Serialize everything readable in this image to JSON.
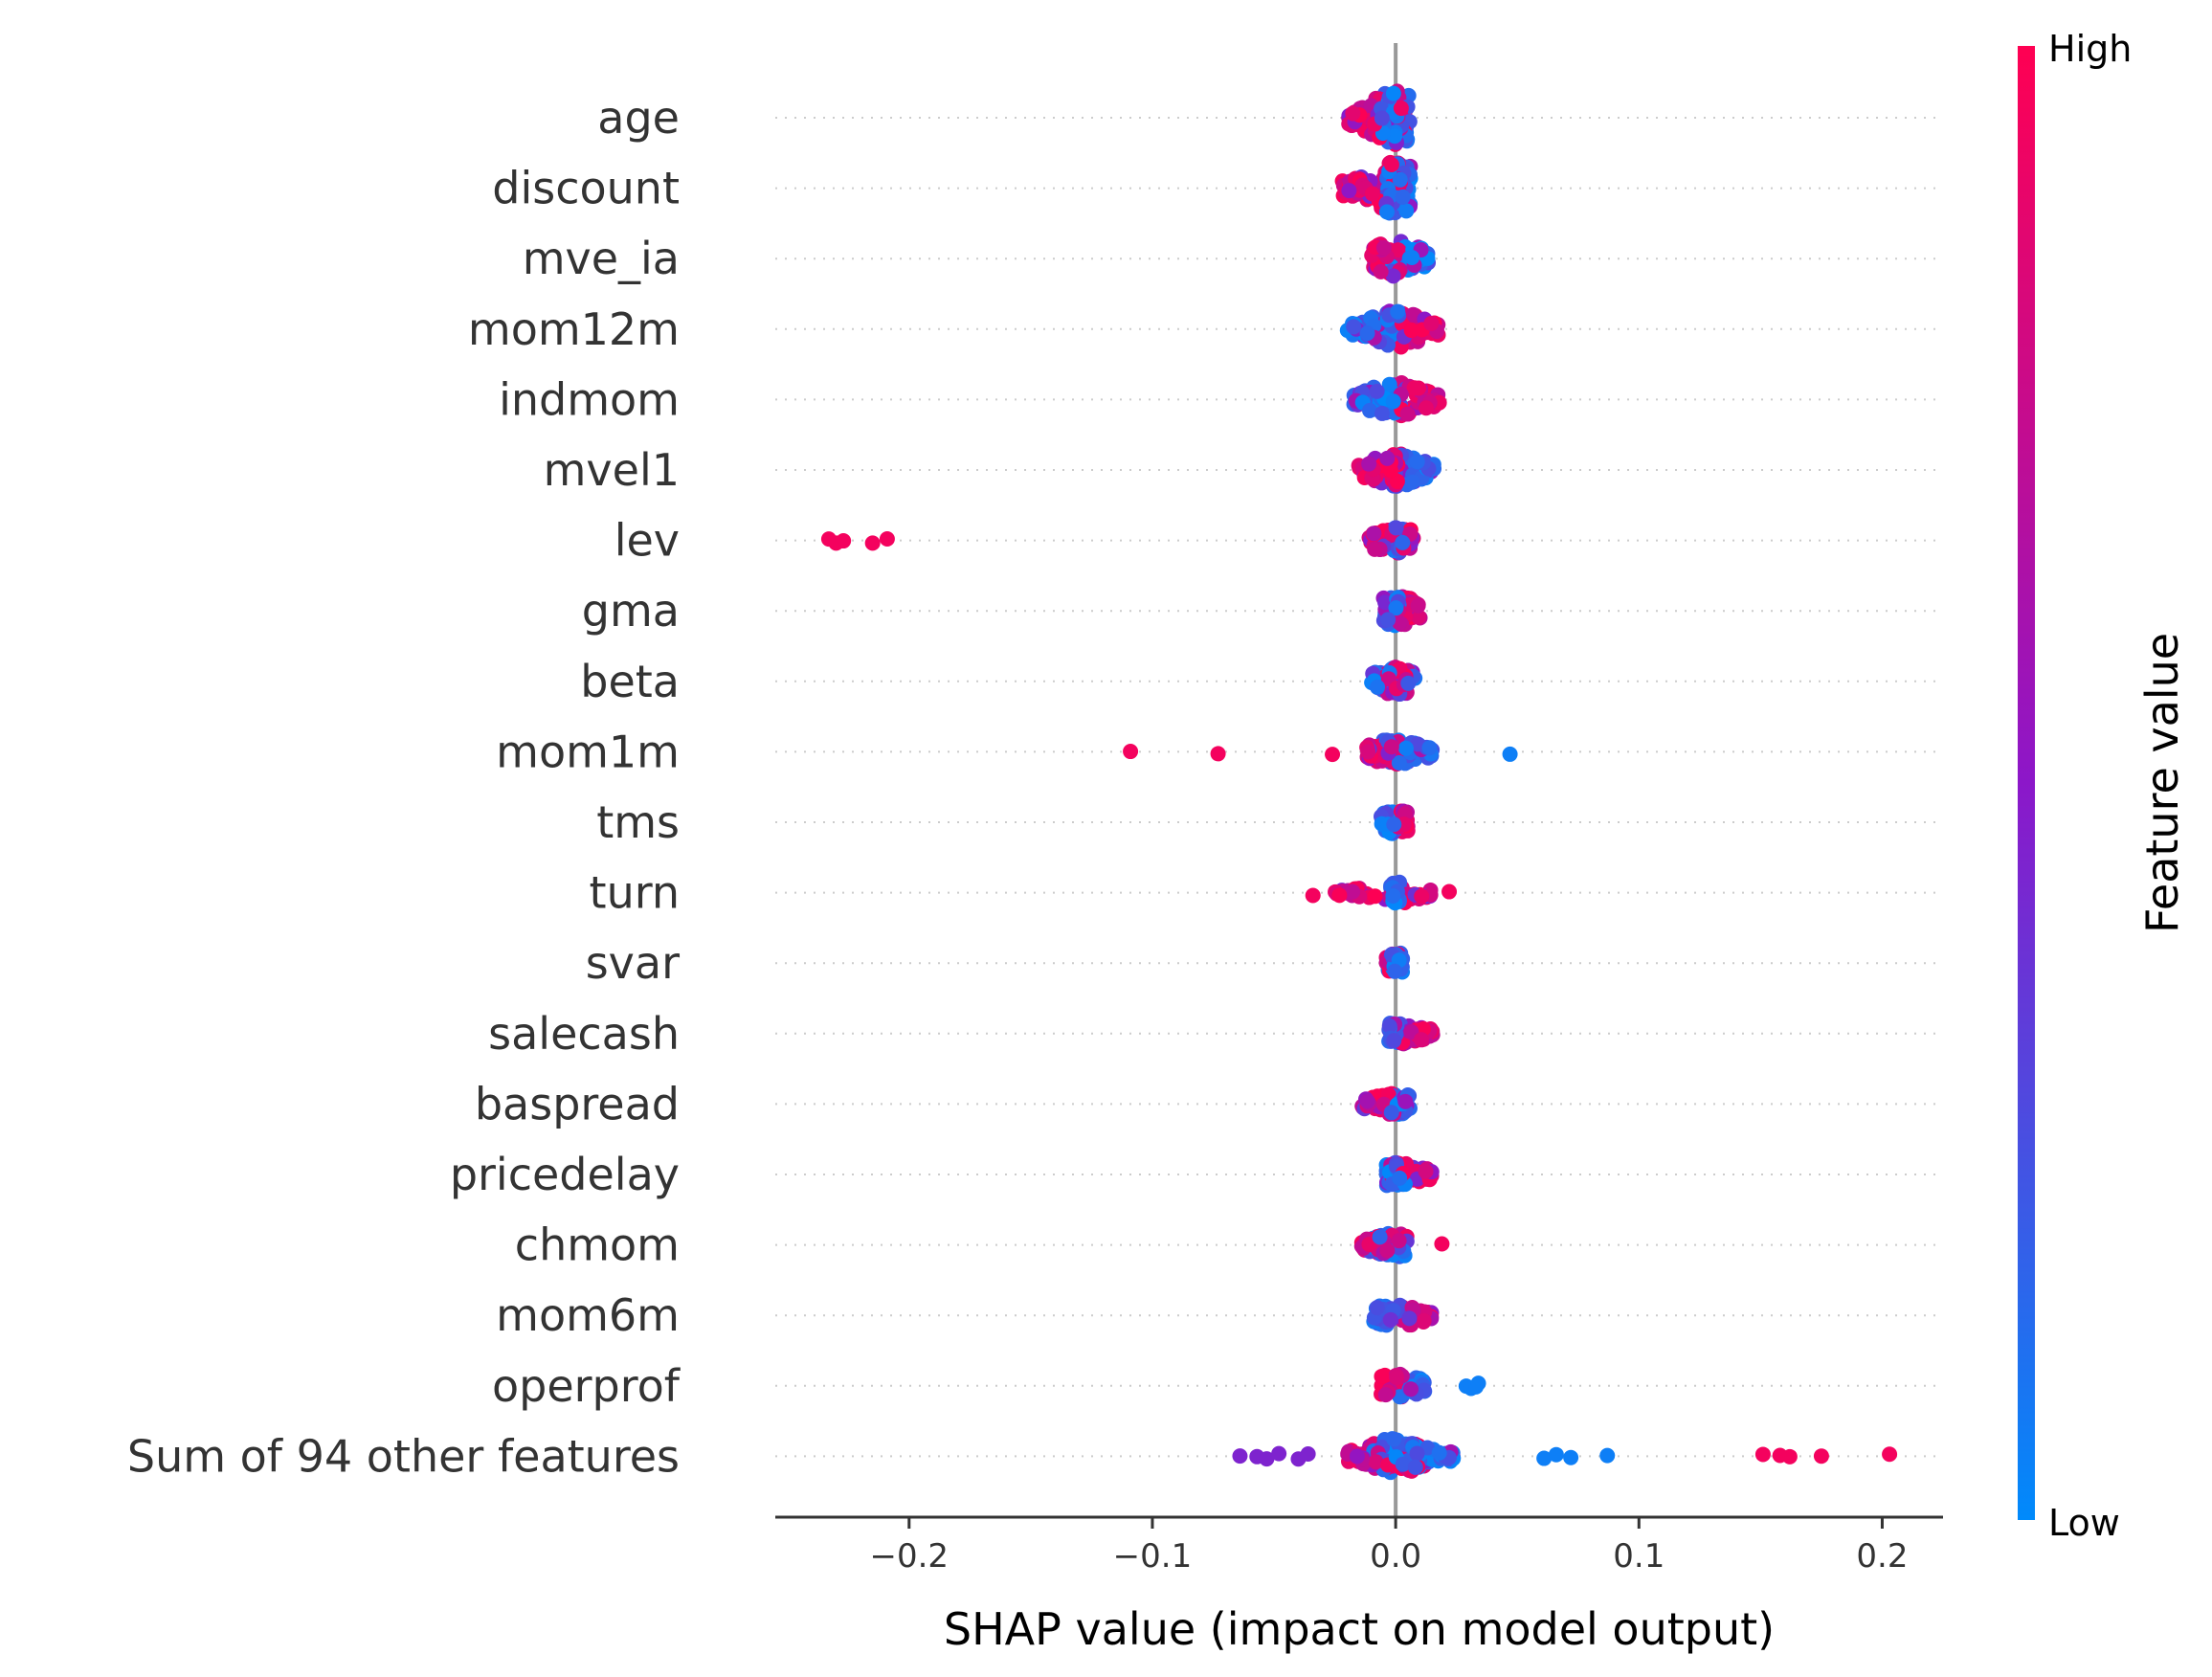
{
  "chart_data": {
    "type": "scatter",
    "subtype": "shap-beeswarm",
    "xlabel": "SHAP value (impact on model output)",
    "xlim": [
      -0.255,
      0.225
    ],
    "xticks": [
      -0.2,
      -0.1,
      0.0,
      0.1,
      0.2
    ],
    "xtick_labels": [
      "−0.2",
      "−0.1",
      "0.0",
      "0.1",
      "0.2"
    ],
    "grid": "dotted horizontal row lines",
    "colorbar": {
      "label": "Feature value",
      "high_label": "High",
      "low_label": "Low",
      "high_color": "#ff0052",
      "mid_color": "#8c17c9",
      "low_color": "#008afb",
      "placement": "right"
    },
    "features": [
      {
        "name": "age",
        "low_min": -0.006,
        "low_max": 0.006,
        "high_min": -0.02,
        "high_max": 0.004,
        "min": -0.02,
        "max": 0.008,
        "spread": 1.0,
        "n": 120
      },
      {
        "name": "discount",
        "low_min": -0.004,
        "low_max": 0.007,
        "high_min": -0.022,
        "high_max": 0.004,
        "min": -0.022,
        "max": 0.008,
        "spread": 1.0,
        "n": 120
      },
      {
        "name": "mve_ia",
        "low_min": -0.002,
        "low_max": 0.014,
        "high_min": -0.01,
        "high_max": 0.002,
        "min": -0.011,
        "max": 0.014,
        "spread": 0.6,
        "n": 90
      },
      {
        "name": "mom12m",
        "low_min": -0.02,
        "low_max": 0.002,
        "high_min": 0.002,
        "high_max": 0.018,
        "min": -0.021,
        "max": 0.018,
        "spread": 0.65,
        "n": 100
      },
      {
        "name": "indmom",
        "low_min": -0.019,
        "low_max": 0.002,
        "high_min": 0.002,
        "high_max": 0.018,
        "min": -0.019,
        "max": 0.018,
        "spread": 0.65,
        "n": 100
      },
      {
        "name": "mvel1",
        "low_min": -0.002,
        "low_max": 0.016,
        "high_min": -0.016,
        "high_max": 0.004,
        "min": -0.016,
        "max": 0.016,
        "spread": 0.55,
        "n": 90
      },
      {
        "name": "lev",
        "low_min": -0.002,
        "low_max": 0.003,
        "high_min": -0.012,
        "high_max": 0.008,
        "min": -0.233,
        "max": 0.008,
        "spread": 0.4,
        "n": 70,
        "outliers": [
          {
            "x": -0.233,
            "c": "high"
          },
          {
            "x": -0.23,
            "c": "high"
          },
          {
            "x": -0.227,
            "c": "high"
          },
          {
            "x": -0.215,
            "c": "high"
          },
          {
            "x": -0.209,
            "c": "high"
          }
        ]
      },
      {
        "name": "gma",
        "low_min": -0.005,
        "low_max": 0.002,
        "high_min": 0.0,
        "high_max": 0.01,
        "min": -0.005,
        "max": 0.01,
        "spread": 0.5,
        "n": 80
      },
      {
        "name": "beta",
        "low_min": -0.012,
        "low_max": 0.012,
        "high_min": -0.005,
        "high_max": 0.005,
        "min": -0.013,
        "max": 0.012,
        "spread": 0.45,
        "n": 80
      },
      {
        "name": "mom1m",
        "low_min": -0.008,
        "low_max": 0.015,
        "high_min": -0.012,
        "high_max": 0.003,
        "min": -0.109,
        "max": 0.047,
        "spread": 0.4,
        "n": 80,
        "outliers": [
          {
            "x": -0.109,
            "c": "high"
          },
          {
            "x": -0.073,
            "c": "high"
          },
          {
            "x": -0.026,
            "c": "high"
          },
          {
            "x": 0.047,
            "c": "low"
          }
        ]
      },
      {
        "name": "tms",
        "low_min": -0.006,
        "low_max": 0.002,
        "high_min": 0.001,
        "high_max": 0.005,
        "min": -0.006,
        "max": 0.005,
        "spread": 0.35,
        "n": 60
      },
      {
        "name": "turn",
        "low_min": -0.002,
        "low_max": 0.002,
        "high_min": -0.025,
        "high_max": 0.016,
        "min": -0.034,
        "max": 0.022,
        "spread": 0.3,
        "n": 70,
        "outliers": [
          {
            "x": -0.034,
            "c": "high"
          },
          {
            "x": 0.022,
            "c": "high"
          }
        ]
      },
      {
        "name": "svar",
        "low_min": -0.003,
        "low_max": 0.003,
        "high_min": -0.004,
        "high_max": 0.002,
        "min": -0.004,
        "max": 0.003,
        "spread": 0.3,
        "n": 60
      },
      {
        "name": "salecash",
        "low_min": -0.003,
        "low_max": 0.002,
        "high_min": 0.002,
        "high_max": 0.016,
        "min": -0.003,
        "max": 0.016,
        "spread": 0.3,
        "n": 70
      },
      {
        "name": "baspread",
        "low_min": -0.002,
        "low_max": 0.006,
        "high_min": -0.014,
        "high_max": 0.0,
        "min": -0.014,
        "max": 0.006,
        "spread": 0.3,
        "n": 70
      },
      {
        "name": "pricedelay",
        "low_min": -0.004,
        "low_max": 0.004,
        "high_min": -0.002,
        "high_max": 0.016,
        "min": -0.008,
        "max": 0.016,
        "spread": 0.35,
        "n": 70
      },
      {
        "name": "chmom",
        "low_min": -0.012,
        "low_max": 0.004,
        "high_min": -0.014,
        "high_max": 0.005,
        "min": -0.015,
        "max": 0.019,
        "spread": 0.35,
        "n": 70,
        "outliers": [
          {
            "x": 0.019,
            "c": "high"
          }
        ]
      },
      {
        "name": "mom6m",
        "low_min": -0.009,
        "low_max": 0.002,
        "high_min": 0.002,
        "high_max": 0.015,
        "min": -0.009,
        "max": 0.015,
        "spread": 0.35,
        "n": 70
      },
      {
        "name": "operprof",
        "low_min": 0.0,
        "low_max": 0.012,
        "high_min": -0.006,
        "high_max": 0.003,
        "min": -0.006,
        "max": 0.034,
        "spread": 0.35,
        "n": 70,
        "outliers": [
          {
            "x": 0.029,
            "c": "low"
          },
          {
            "x": 0.031,
            "c": "low"
          },
          {
            "x": 0.033,
            "c": "low"
          },
          {
            "x": 0.034,
            "c": "low"
          }
        ]
      },
      {
        "name": "Sum of 94 other features",
        "low_min": -0.01,
        "low_max": 0.024,
        "high_min": -0.02,
        "high_max": 0.014,
        "min": -0.064,
        "max": 0.203,
        "spread": 0.65,
        "n": 150,
        "outliers": [
          {
            "x": -0.064,
            "c": "mid"
          },
          {
            "x": -0.057,
            "c": "mid"
          },
          {
            "x": -0.053,
            "c": "mid"
          },
          {
            "x": -0.048,
            "c": "mid"
          },
          {
            "x": -0.04,
            "c": "mid"
          },
          {
            "x": -0.036,
            "c": "mid"
          },
          {
            "x": 0.061,
            "c": "low"
          },
          {
            "x": 0.066,
            "c": "low"
          },
          {
            "x": 0.072,
            "c": "low"
          },
          {
            "x": 0.087,
            "c": "low"
          },
          {
            "x": 0.151,
            "c": "high"
          },
          {
            "x": 0.158,
            "c": "high"
          },
          {
            "x": 0.162,
            "c": "high"
          },
          {
            "x": 0.175,
            "c": "high"
          },
          {
            "x": 0.203,
            "c": "high"
          }
        ]
      }
    ]
  }
}
